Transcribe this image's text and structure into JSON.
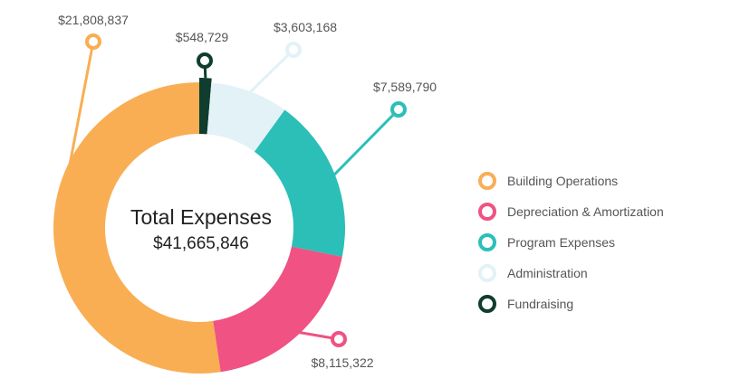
{
  "chart_data": {
    "type": "pie",
    "center_title": "Total Expenses",
    "center_total": "$41,665,846",
    "slices": [
      {
        "name": "Fundraising",
        "value": 548729,
        "label": "$548,729",
        "color": "#0f3d2e"
      },
      {
        "name": "Administration",
        "value": 3603168,
        "label": "$3,603,168",
        "color": "#e2f2f7"
      },
      {
        "name": "Program Expenses",
        "value": 7589790,
        "label": "$7,589,790",
        "color": "#2bbfb8"
      },
      {
        "name": "Depreciation & Amortization",
        "value": 8115322,
        "label": "$8,115,322",
        "color": "#ef5283"
      },
      {
        "name": "Building Operations",
        "value": 21808837,
        "label": "$21,808,837",
        "color": "#f9ae54"
      }
    ]
  },
  "legend": {
    "items": [
      {
        "label": "Building Operations",
        "color": "#f9ae54"
      },
      {
        "label": "Depreciation & Amortization",
        "color": "#ef5283"
      },
      {
        "label": "Program Expenses",
        "color": "#2bbfb8"
      },
      {
        "label": "Administration",
        "color": "#e2f2f7"
      },
      {
        "label": "Fundraising",
        "color": "#0f3d2e"
      }
    ]
  }
}
